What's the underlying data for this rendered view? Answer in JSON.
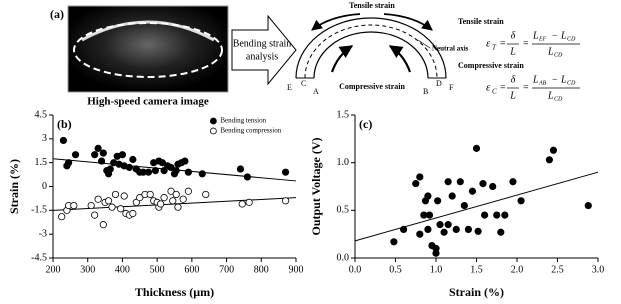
{
  "panel_a": {
    "label": "(a)",
    "image_caption": "High-speed camera image",
    "arrow_text": [
      "Bending strain",
      "analysis"
    ],
    "diagram": {
      "tensile": "Tensile strain",
      "compressive": "Compressive strain",
      "neutral": "Neutral axis",
      "points": {
        "E": "E",
        "C": "C",
        "A": "A",
        "B": "B",
        "D": "D",
        "F": "F"
      }
    },
    "equations": [
      {
        "title": "Tensile strain",
        "var": "ε",
        "var_sub": "T",
        "equals": "=",
        "delta": "δ",
        "length": "L",
        "minus": "−",
        "num_a": "L",
        "num_a_sub": "EF",
        "num_b": "L",
        "num_b_sub": "CD",
        "den": "L",
        "den_sub": "CD"
      },
      {
        "title": "Compressive strain",
        "var": "ε",
        "var_sub": "C",
        "equals": "=",
        "delta": "δ",
        "length": "L",
        "minus": "−",
        "num_a": "L",
        "num_a_sub": "AB",
        "num_b": "L",
        "num_b_sub": "CD",
        "den": "L",
        "den_sub": "CD"
      }
    ]
  },
  "chart_data": [
    {
      "type": "scatter",
      "panel_label": "(b)",
      "x_label": "Thickness (μm)",
      "y_label": "Strain (%)",
      "xlim": [
        200,
        900
      ],
      "xticks": [
        200,
        300,
        400,
        500,
        600,
        700,
        800,
        900
      ],
      "ylim": [
        -4.5,
        4.5
      ],
      "yticks": [
        -4.5,
        -3,
        -1.5,
        0,
        1.5,
        3,
        4.5
      ],
      "legend": "upper right",
      "series": [
        {
          "name": "Bending tension",
          "color": "#000000",
          "marker": "filled",
          "x": [
            230,
            240,
            245,
            265,
            320,
            330,
            340,
            345,
            355,
            360,
            365,
            375,
            385,
            390,
            400,
            405,
            420,
            430,
            440,
            450,
            460,
            475,
            490,
            495,
            505,
            515,
            520,
            530,
            540,
            550,
            555,
            560,
            570,
            580,
            590,
            630,
            740,
            760,
            870
          ],
          "values": [
            2.9,
            1.3,
            1.5,
            2.0,
            2.0,
            2.4,
            1.6,
            2.1,
            1.0,
            0.8,
            1.1,
            1.5,
            1.9,
            1.4,
            2.0,
            1.3,
            1.2,
            1.7,
            1.1,
            0.9,
            0.9,
            0.9,
            1.5,
            1.0,
            1.6,
            1.5,
            1.0,
            1.3,
            1.2,
            0.8,
            1.0,
            1.4,
            1.5,
            1.6,
            0.9,
            0.8,
            1.1,
            0.6,
            0.9
          ]
        },
        {
          "name": "Bending compression",
          "color": "#000000",
          "marker": "open",
          "x": [
            225,
            240,
            245,
            260,
            310,
            320,
            330,
            345,
            350,
            360,
            370,
            380,
            395,
            405,
            410,
            420,
            430,
            440,
            450,
            465,
            480,
            490,
            500,
            505,
            510,
            520,
            540,
            545,
            555,
            560,
            575,
            590,
            640,
            745,
            765,
            870
          ],
          "values": [
            -1.9,
            -1.5,
            -1.2,
            -1.2,
            -1.2,
            -1.8,
            -0.8,
            -2.4,
            -1.0,
            -0.9,
            -1.3,
            -0.5,
            -1.4,
            -0.6,
            -1.7,
            -1.8,
            -1.7,
            -1.0,
            -0.7,
            -0.5,
            -0.5,
            -0.9,
            -1.0,
            -1.3,
            -1.1,
            -0.7,
            -0.3,
            -0.9,
            -0.5,
            -1.3,
            -0.8,
            -0.3,
            -0.5,
            -1.1,
            -1.0,
            -0.9
          ]
        }
      ],
      "trendlines": [
        {
          "color": "#000000",
          "x": [
            200,
            900
          ],
          "values": [
            1.75,
            0.35
          ]
        },
        {
          "color": "#000000",
          "x": [
            200,
            900
          ],
          "values": [
            -1.5,
            -0.7
          ]
        }
      ]
    },
    {
      "type": "scatter",
      "panel_label": "(c)",
      "x_label": "Strain (%)",
      "y_label": "Output Voltage (V)",
      "xlim": [
        0,
        3
      ],
      "xticks": [
        {
          "value": 0,
          "label": "0.0"
        },
        0.5,
        {
          "value": 1,
          "label": "1.0"
        },
        1.5,
        {
          "value": 2,
          "label": "2.0"
        },
        2.5,
        {
          "value": 3,
          "label": "3.0"
        }
      ],
      "ylim": [
        0,
        1.5
      ],
      "yticks": [
        {
          "value": 0,
          "label": "0.0"
        },
        0.5,
        {
          "value": 1,
          "label": "1.0"
        },
        1.5
      ],
      "series": [
        {
          "color": "#000000",
          "marker": "filled",
          "x": [
            0.48,
            0.6,
            0.75,
            0.8,
            0.8,
            0.85,
            0.87,
            0.9,
            0.9,
            0.92,
            0.95,
            1.0,
            1.0,
            1.02,
            1.05,
            1.1,
            1.15,
            1.15,
            1.2,
            1.25,
            1.3,
            1.35,
            1.4,
            1.45,
            1.5,
            1.52,
            1.58,
            1.6,
            1.7,
            1.75,
            1.8,
            1.85,
            1.95,
            2.05,
            2.4,
            2.45,
            2.88
          ],
          "values": [
            0.17,
            0.3,
            0.78,
            0.85,
            0.25,
            0.45,
            0.6,
            0.3,
            0.65,
            0.45,
            0.13,
            0.1,
            0.05,
            0.6,
            0.35,
            0.27,
            0.8,
            0.35,
            0.65,
            0.3,
            0.8,
            0.55,
            0.3,
            0.7,
            1.15,
            0.28,
            0.78,
            0.45,
            0.75,
            0.45,
            0.27,
            0.45,
            0.8,
            0.6,
            1.03,
            1.13,
            0.55
          ]
        }
      ],
      "trendlines": [
        {
          "color": "#000000",
          "x": [
            0,
            3
          ],
          "values": [
            0.18,
            0.9
          ]
        }
      ]
    }
  ]
}
